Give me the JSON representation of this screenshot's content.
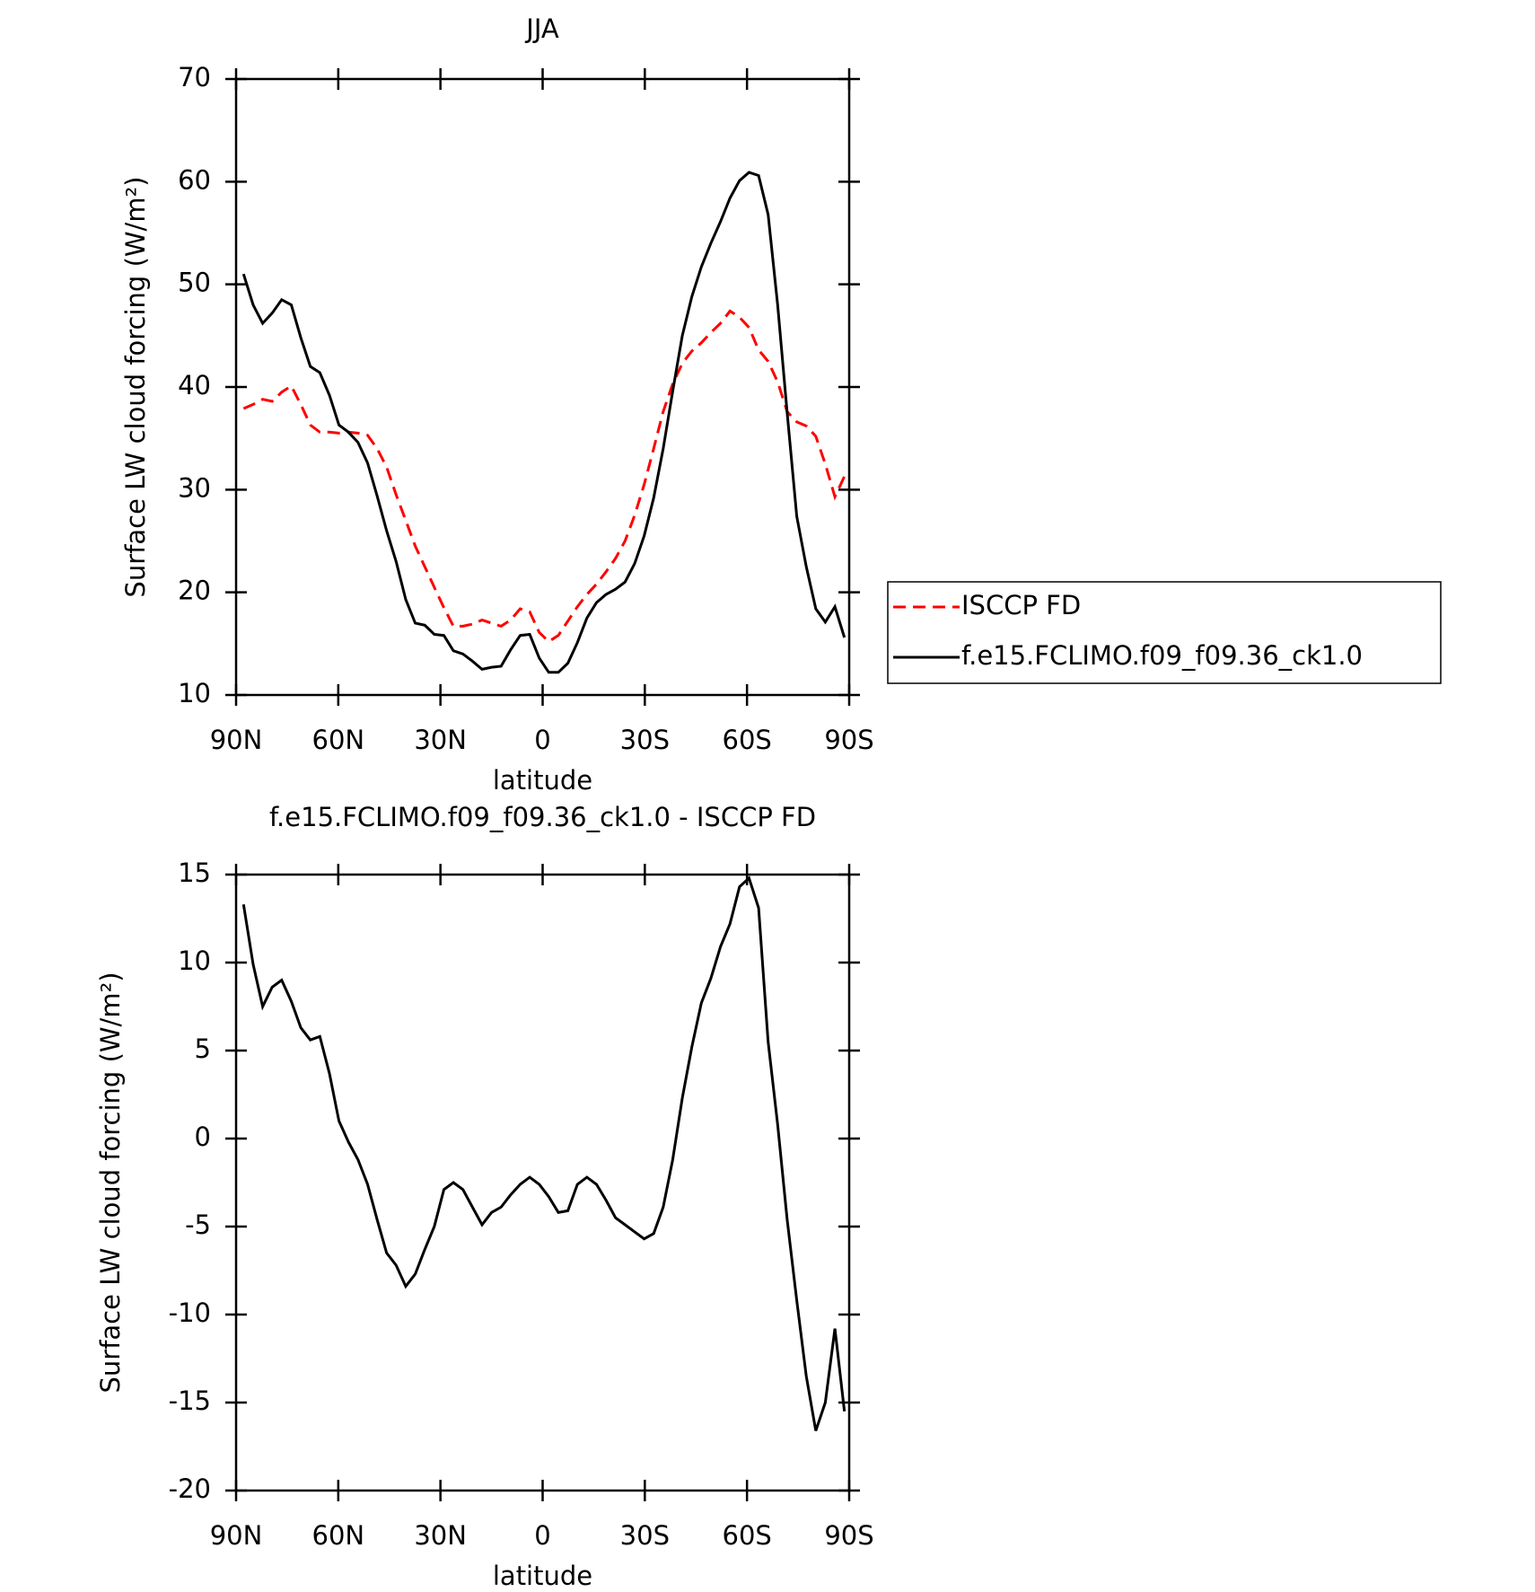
{
  "chart_data": [
    {
      "type": "line",
      "title": "JJA",
      "xlabel": "latitude",
      "ylabel": "Surface LW cloud forcing (W/m²)",
      "x": [
        87.8,
        85.0,
        82.2,
        79.4,
        76.6,
        73.8,
        71.0,
        68.2,
        65.4,
        62.6,
        59.8,
        57.0,
        54.2,
        51.4,
        48.6,
        45.8,
        43.0,
        40.2,
        37.4,
        34.6,
        31.8,
        29.0,
        26.2,
        23.4,
        20.6,
        17.8,
        15.0,
        12.2,
        9.4,
        6.6,
        3.8,
        1.0,
        -1.8,
        -4.6,
        -7.4,
        -10.2,
        -13.0,
        -15.8,
        -18.6,
        -21.4,
        -24.2,
        -27.0,
        -29.8,
        -32.6,
        -35.4,
        -38.2,
        -41.0,
        -43.8,
        -46.6,
        -49.4,
        -52.2,
        -55.0,
        -57.8,
        -60.6,
        -63.4,
        -66.2,
        -69.0,
        -71.8,
        -74.6,
        -77.4,
        -80.2,
        -83.0,
        -85.8,
        -88.6
      ],
      "xlim": [
        90,
        -90
      ],
      "xticks": [
        {
          "value": 90,
          "label": "90N"
        },
        {
          "value": 60,
          "label": "60N"
        },
        {
          "value": 30,
          "label": "30N"
        },
        0,
        {
          "value": -30,
          "label": "30S"
        },
        {
          "value": -60,
          "label": "60S"
        },
        {
          "value": -90,
          "label": "90S"
        }
      ],
      "ylim": [
        10,
        70
      ],
      "yticks": [
        10,
        20,
        30,
        40,
        50,
        60,
        70
      ],
      "legend": "right",
      "series": [
        {
          "name": "ISCCP FD",
          "color": "#ff0000",
          "linestyle": "dashed",
          "values": [
            37.9,
            38.3,
            38.8,
            38.6,
            39.5,
            40.1,
            38.3,
            36.3,
            35.6,
            35.6,
            35.5,
            35.6,
            35.5,
            35.3,
            34,
            32.2,
            29.5,
            27,
            24.5,
            22.5,
            20.5,
            18.5,
            16.7,
            16.7,
            16.9,
            17.3,
            17,
            16.7,
            17.3,
            18.4,
            18.1,
            16.1,
            15.2,
            15.8,
            17.2,
            18.6,
            19.8,
            20.8,
            22,
            23.3,
            25,
            27.5,
            30.5,
            34,
            37.6,
            40.3,
            42.3,
            43.5,
            44.3,
            45.3,
            46.2,
            47.4,
            46.8,
            45.8,
            43.6,
            42.5,
            40.5,
            37.6,
            36.6,
            36.2,
            35.2,
            32.5,
            29.3,
            31.3
          ]
        },
        {
          "name": "f.e15.FCLIMO.f09_f09.36_ck1.0",
          "color": "#000000",
          "linestyle": "solid",
          "values": [
            51,
            48,
            46.2,
            47.2,
            48.5,
            48,
            44.8,
            42,
            41.4,
            39.2,
            36.3,
            35.6,
            34.6,
            32.6,
            29.4,
            26,
            23,
            19.3,
            17,
            16.8,
            15.9,
            15.8,
            14.3,
            14,
            13.3,
            12.5,
            12.7,
            12.8,
            14.4,
            15.8,
            15.9,
            13.6,
            12.2,
            12.2,
            13.1,
            15.1,
            17.5,
            19,
            19.8,
            20.3,
            21,
            22.8,
            25.5,
            29.2,
            34,
            39.6,
            45,
            48.8,
            51.7,
            54,
            56.1,
            58.4,
            60.1,
            60.9,
            60.6,
            56.8,
            48,
            37.5,
            27.4,
            22.5,
            18.4,
            17.1,
            18.6,
            15.6
          ]
        }
      ]
    },
    {
      "type": "line",
      "title": "f.e15.FCLIMO.f09_f09.36_ck1.0 - ISCCP FD",
      "xlabel": "latitude",
      "ylabel": "Surface LW cloud forcing (W/m²)",
      "x": [
        87.8,
        85.0,
        82.2,
        79.4,
        76.6,
        73.8,
        71.0,
        68.2,
        65.4,
        62.6,
        59.8,
        57.0,
        54.2,
        51.4,
        48.6,
        45.8,
        43.0,
        40.2,
        37.4,
        34.6,
        31.8,
        29.0,
        26.2,
        23.4,
        20.6,
        17.8,
        15.0,
        12.2,
        9.4,
        6.6,
        3.8,
        1.0,
        -1.8,
        -4.6,
        -7.4,
        -10.2,
        -13.0,
        -15.8,
        -18.6,
        -21.4,
        -24.2,
        -27.0,
        -29.8,
        -32.6,
        -35.4,
        -38.2,
        -41.0,
        -43.8,
        -46.6,
        -49.4,
        -52.2,
        -55.0,
        -57.8,
        -60.6,
        -63.4,
        -66.2,
        -69.0,
        -71.8,
        -74.6,
        -77.4,
        -80.2,
        -83.0,
        -85.8,
        -88.6
      ],
      "xlim": [
        90,
        -90
      ],
      "xticks": [
        {
          "value": 90,
          "label": "90N"
        },
        {
          "value": 60,
          "label": "60N"
        },
        {
          "value": 30,
          "label": "30N"
        },
        0,
        {
          "value": -30,
          "label": "30S"
        },
        {
          "value": -60,
          "label": "60S"
        },
        {
          "value": -90,
          "label": "90S"
        }
      ],
      "ylim": [
        -20,
        15
      ],
      "yticks": [
        -20,
        -15,
        -10,
        -5,
        0,
        5,
        10,
        15
      ],
      "series": [
        {
          "color": "#000000",
          "linestyle": "solid",
          "values": [
            13.3,
            9.9,
            7.5,
            8.6,
            9.0,
            7.8,
            6.3,
            5.6,
            5.8,
            3.7,
            1.0,
            -0.2,
            -1.2,
            -2.6,
            -4.6,
            -6.5,
            -7.2,
            -8.4,
            -7.7,
            -6.3,
            -5.0,
            -2.9,
            -2.5,
            -2.9,
            -3.9,
            -4.9,
            -4.2,
            -3.9,
            -3.2,
            -2.6,
            -2.2,
            -2.6,
            -3.3,
            -4.2,
            -4.1,
            -2.6,
            -2.2,
            -2.6,
            -3.5,
            -4.5,
            -4.9,
            -5.3,
            -5.7,
            -5.4,
            -3.9,
            -1.2,
            2.3,
            5.2,
            7.7,
            9.1,
            10.9,
            12.2,
            14.3,
            14.8,
            13.1,
            5.5,
            0.8,
            -4.6,
            -9.2,
            -13.5,
            -16.6,
            -15.0,
            -10.8,
            -15.5
          ]
        }
      ]
    }
  ]
}
